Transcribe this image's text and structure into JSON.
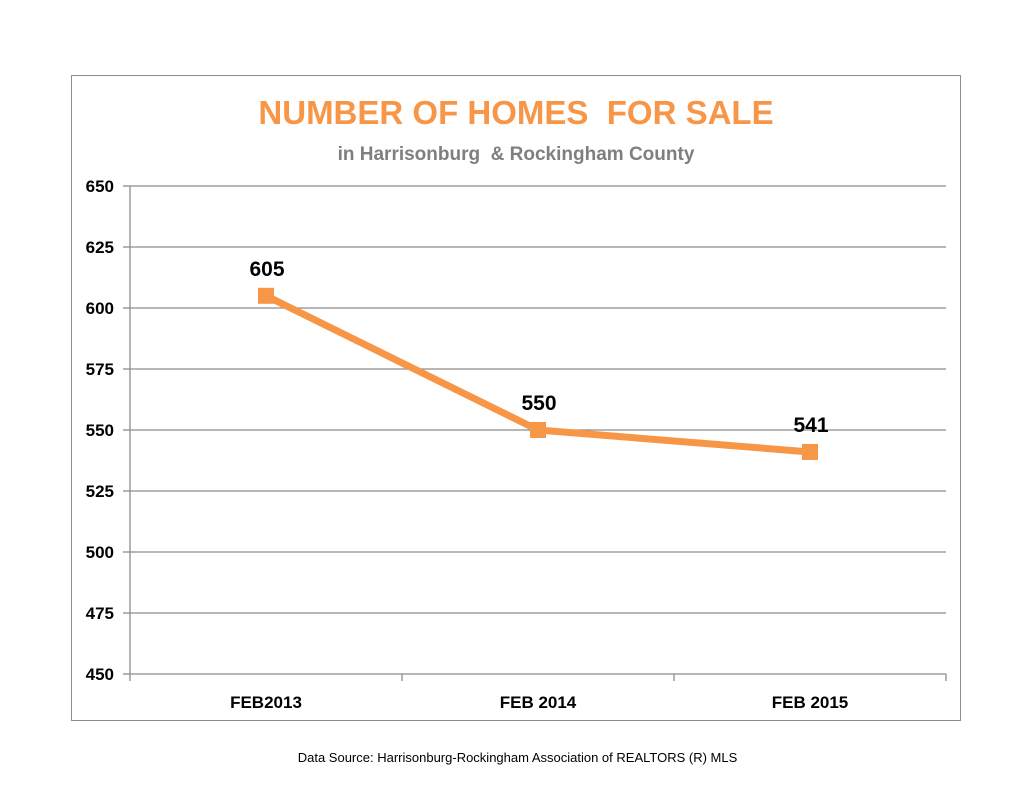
{
  "chart_data": {
    "type": "line",
    "title": "NUMBER OF HOMES  FOR SALE",
    "subtitle": "in Harrisonburg  & Rockingham County",
    "xlabel": "",
    "ylabel": "",
    "categories": [
      "FEB2013",
      "FEB 2014",
      "FEB 2015"
    ],
    "series": [
      {
        "values": [
          605,
          550,
          541
        ],
        "data_labels": [
          "605",
          "550",
          "541"
        ]
      }
    ],
    "ylim": [
      450,
      650
    ],
    "yticks": [
      650,
      625,
      600,
      575,
      550,
      525,
      500,
      475,
      450
    ],
    "grid": true,
    "legend": "none",
    "colors": {
      "line": "#f79646",
      "title": "#f79646",
      "subtitle": "#7f7f7f",
      "grid": "#8c8c8c"
    }
  },
  "footer": {
    "source": "Data Source: Harrisonburg-Rockingham Association of REALTORS (R) MLS"
  }
}
